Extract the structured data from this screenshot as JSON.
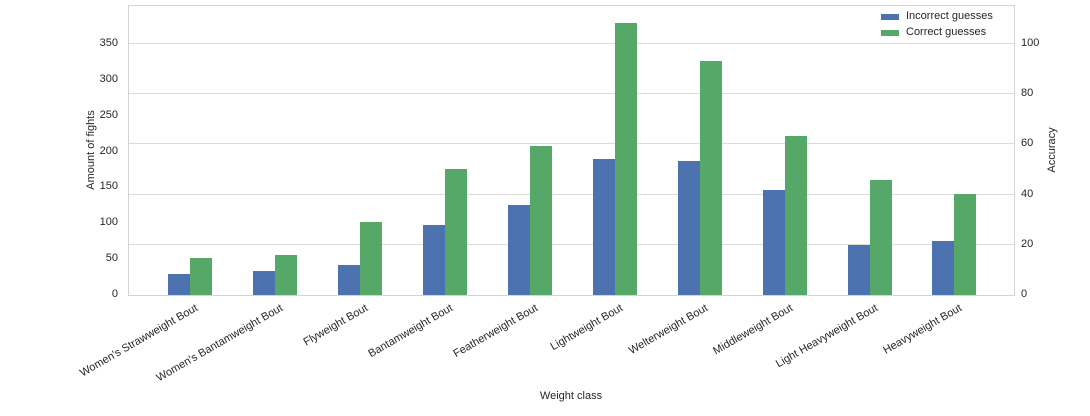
{
  "chart_data": {
    "type": "bar",
    "title": "",
    "xlabel": "Weight class",
    "ylabel_left": "Amount of fights",
    "ylabel_right": "Accuracy",
    "categories": [
      "Women's Strawweight Bout",
      "Women's Bantamweight Bout",
      "Flyweight Bout",
      "Bantamweight Bout",
      "Featherweight Bout",
      "Lightweight Bout",
      "Welterweight Bout",
      "Middleweight Bout",
      "Light Heavyweight Bout",
      "Heavyweight Bout"
    ],
    "series": [
      {
        "name": "Incorrect guesses",
        "color": "#4c72b0",
        "values": [
          30,
          33,
          42,
          98,
          125,
          190,
          187,
          146,
          70,
          75
        ]
      },
      {
        "name": "Correct guesses",
        "color": "#55a868",
        "values": [
          51,
          56,
          102,
          176,
          208,
          380,
          326,
          222,
          160,
          141
        ]
      }
    ],
    "left_axis": {
      "label": "Amount of fights",
      "ticks": [
        0,
        50,
        100,
        150,
        200,
        250,
        300,
        350
      ],
      "range": [
        0,
        403
      ]
    },
    "right_axis": {
      "label": "Accuracy",
      "ticks": [
        0,
        20,
        40,
        60,
        80,
        100
      ],
      "range": [
        0,
        115.1
      ]
    },
    "grid": {
      "horizontal": true,
      "vertical": false,
      "aligned_to": "right_axis"
    },
    "legend": {
      "position": "top-right"
    }
  },
  "colors": {
    "grid": "#dcdcdc",
    "spine": "#d4d4d4",
    "text": "#262626",
    "background": "#ffffff"
  }
}
